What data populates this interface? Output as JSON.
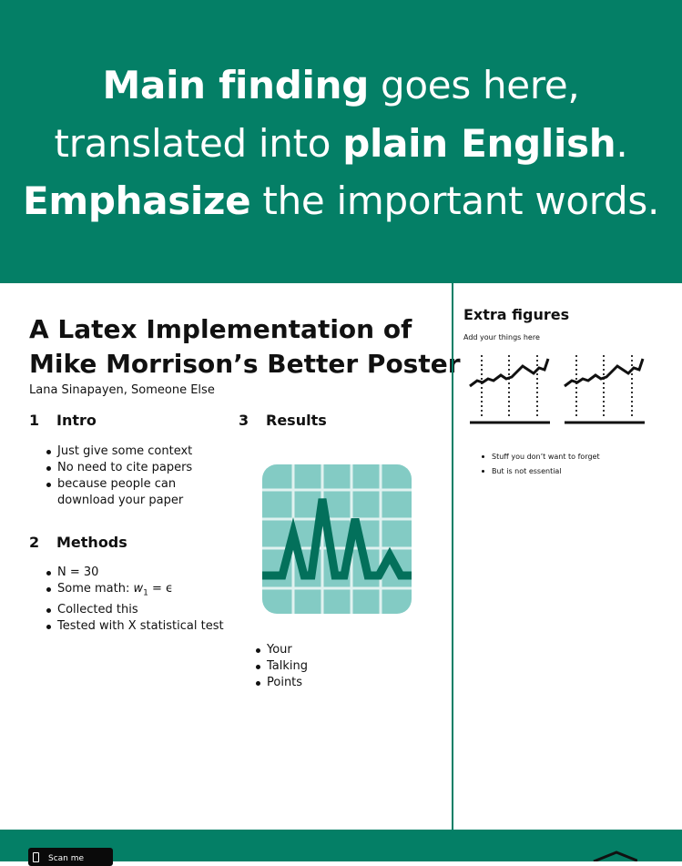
{
  "banner": {
    "line1": {
      "bold": "Main finding",
      "rest": " goes here,"
    },
    "line2": {
      "pre": "translated into ",
      "bold": "plain English",
      "post": "."
    },
    "line3": {
      "bold": "Emphasize",
      "rest": " the important words."
    }
  },
  "poster": {
    "title_line1": "A Latex Implementation of",
    "title_line2": "Mike Morrison’s Better Poster",
    "authors": "Lana Sinapayen, Someone Else"
  },
  "sections": [
    {
      "number": "1",
      "title": "Intro",
      "bullets": [
        "Just give some context",
        "No need to cite papers",
        "because people can download your paper"
      ]
    },
    {
      "number": "2",
      "title": "Methods",
      "bullets": [
        "N = 30",
        "Some math: ",
        "Collected this",
        "Tested with X statistical test"
      ]
    },
    {
      "number": "3",
      "title": "Results",
      "bullets": [
        "Your",
        "Talking",
        "Points"
      ]
    }
  ],
  "math": {
    "lhs": "w",
    "sub": "1",
    "rhs": " = ϵ"
  },
  "extra": {
    "title": "Extra figures",
    "subtitle": "Add your things here",
    "bullets": [
      "Stuff you don’t want to forget",
      "But is not essential"
    ]
  },
  "footer": {
    "scan_label": "Scan me"
  },
  "icons": {
    "results": "line-chart-grid-icon",
    "sparkline": "sparkline-icon",
    "phone": "phone-icon",
    "logo": "house-logo-icon"
  },
  "colors": {
    "brand": "#047f66",
    "icon_bg": "#83cbc4",
    "icon_line": "#03705b"
  }
}
